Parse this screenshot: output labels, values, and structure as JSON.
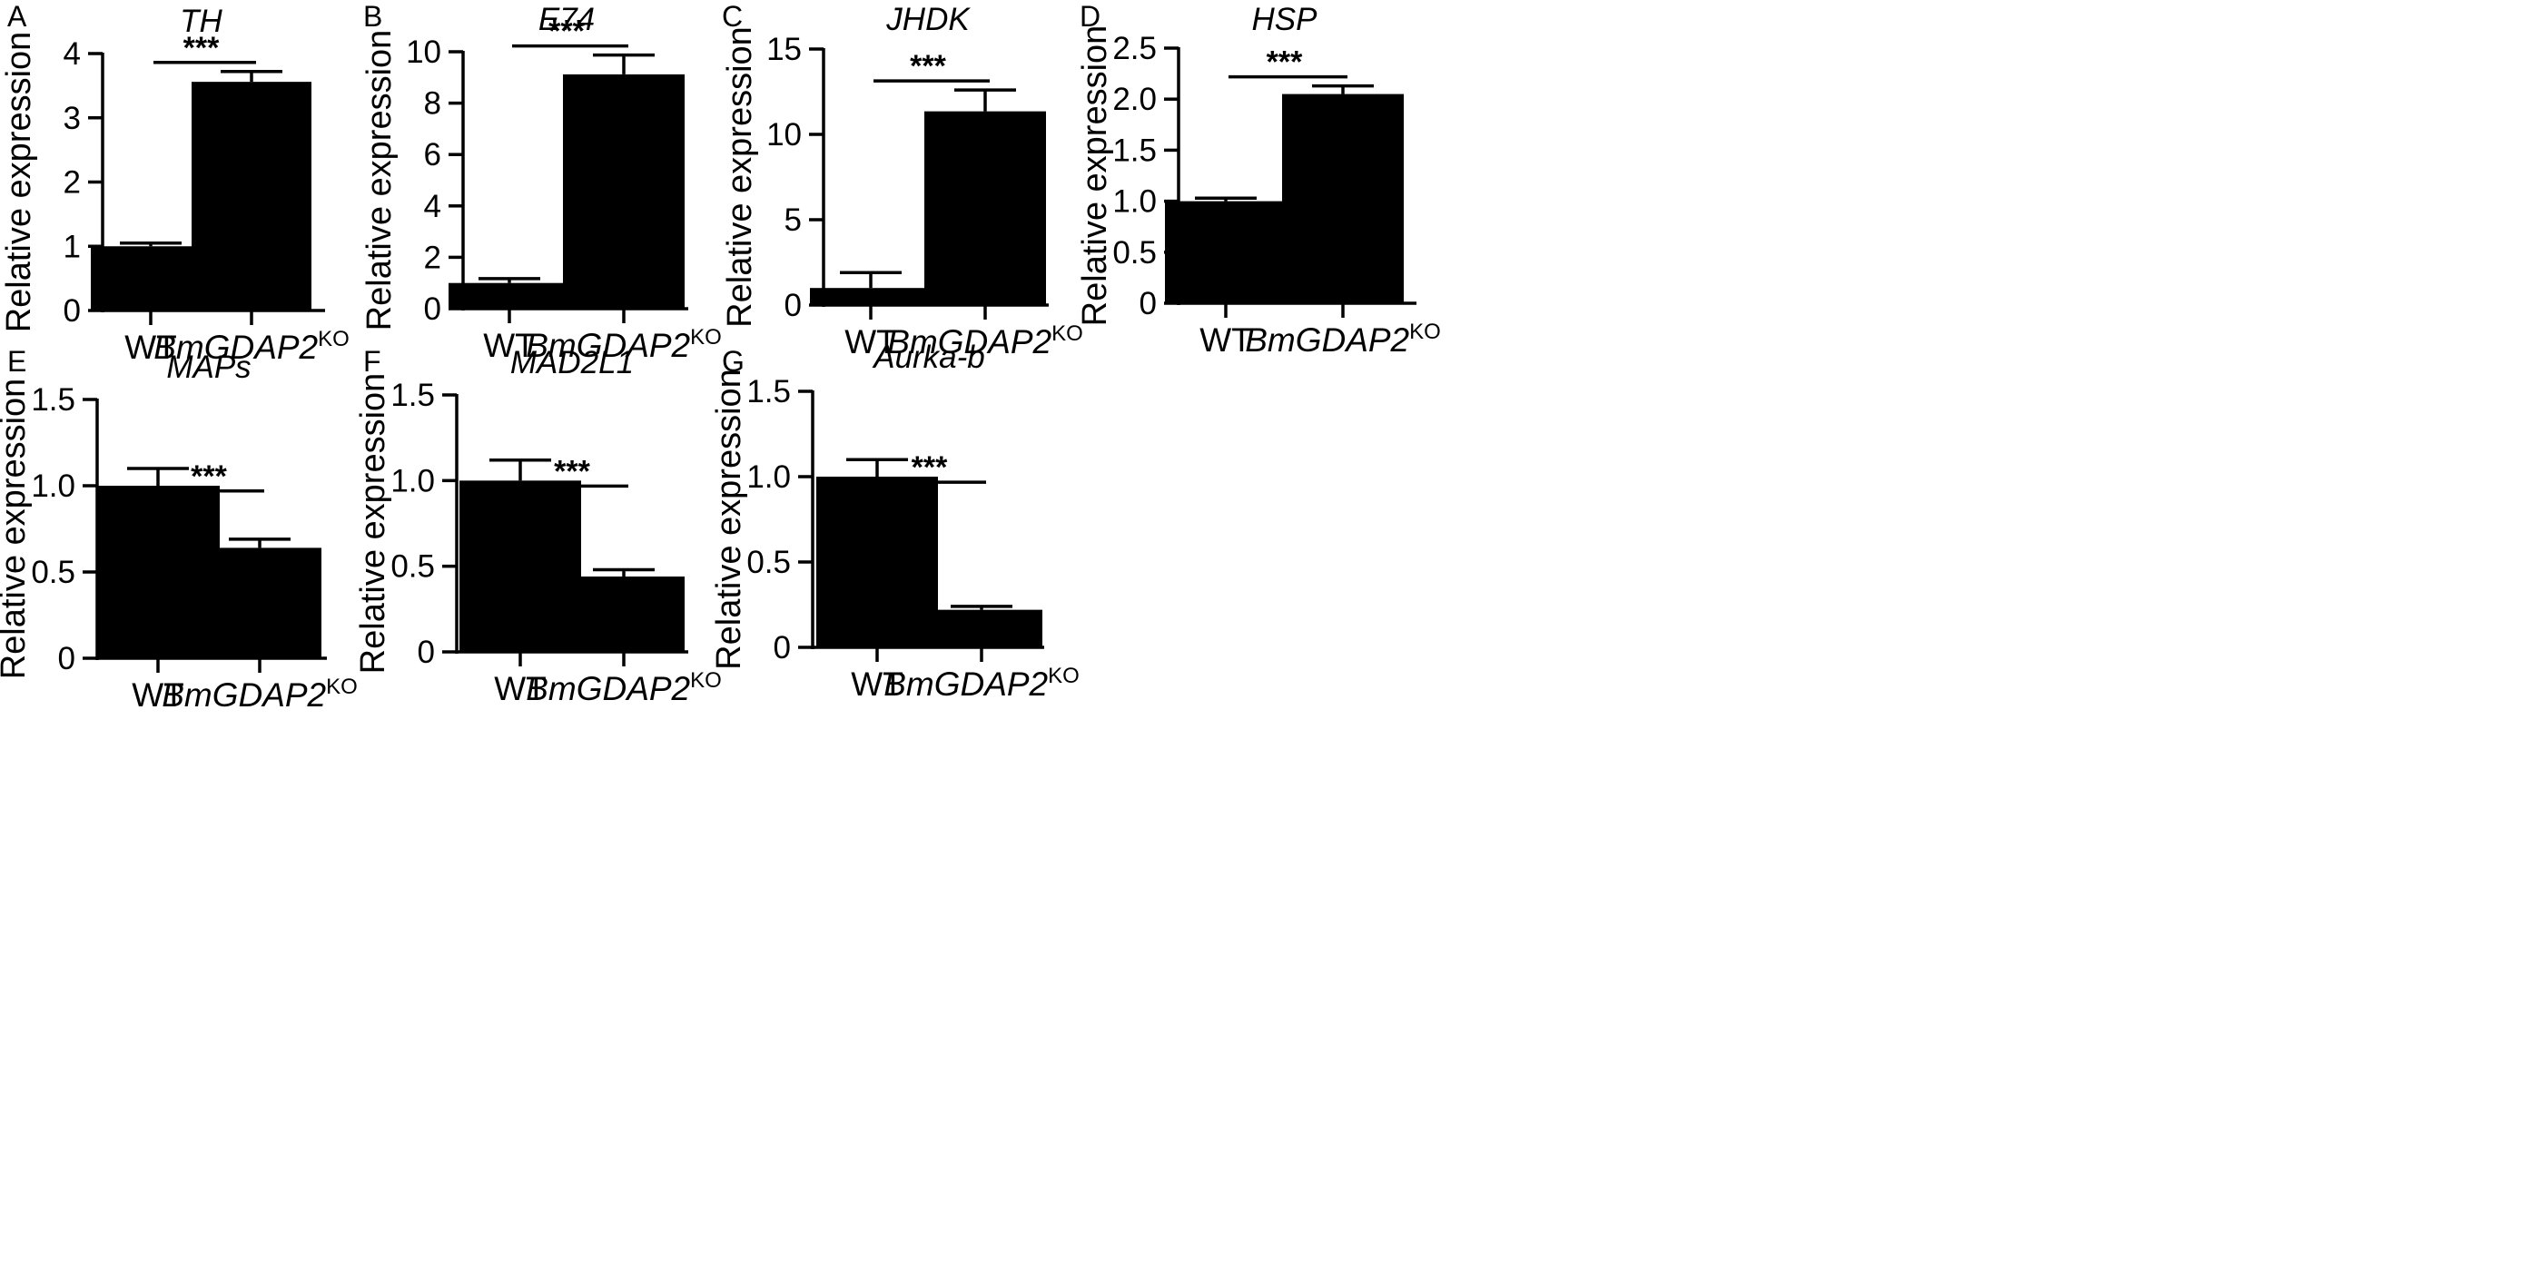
{
  "figure": {
    "chart_data": [
      {
        "panel": "A",
        "type": "bar",
        "title": "TH",
        "ylabel": "Relative expression",
        "categories": [
          "WT",
          "BmGDAP2"
        ],
        "category_superscripts": [
          "",
          "KO"
        ],
        "values": [
          1.0,
          3.56
        ],
        "errors": [
          0.05,
          0.16
        ],
        "ylim": [
          0,
          4
        ],
        "yticks": [
          0,
          1,
          2,
          3,
          4
        ],
        "ytick_labels": [
          "0",
          "1",
          "2",
          "3",
          "4"
        ],
        "significance": "***",
        "axis_color": "#000000",
        "bar_color": "#000000"
      },
      {
        "panel": "B",
        "type": "bar",
        "title": "E74",
        "ylabel": "Relative expression",
        "categories": [
          "WT",
          "BmGDAP2"
        ],
        "category_superscripts": [
          "",
          "KO"
        ],
        "values": [
          1.0,
          9.12
        ],
        "errors": [
          0.17,
          0.75
        ],
        "ylim": [
          0,
          10
        ],
        "yticks": [
          0,
          2,
          4,
          6,
          8,
          10
        ],
        "ytick_labels": [
          "0",
          "2",
          "4",
          "6",
          "8",
          "10"
        ],
        "significance": "***",
        "axis_color": "#000000",
        "bar_color": "#000000"
      },
      {
        "panel": "C",
        "type": "bar",
        "title": "JHDK",
        "ylabel": "Relative expression",
        "categories": [
          "WT",
          "BmGDAP2"
        ],
        "category_superscripts": [
          "",
          "KO"
        ],
        "values": [
          1.0,
          11.35
        ],
        "errors": [
          0.9,
          1.25
        ],
        "ylim": [
          0,
          15
        ],
        "yticks": [
          0,
          5,
          10,
          15
        ],
        "ytick_labels": [
          "0",
          "5",
          "10",
          "15"
        ],
        "significance": "***",
        "axis_color": "#000000",
        "bar_color": "#000000"
      },
      {
        "panel": "D",
        "type": "bar",
        "title": "HSP",
        "ylabel": "Relative expression",
        "categories": [
          "WT",
          "BmGDAP2"
        ],
        "category_superscripts": [
          "",
          "KO"
        ],
        "values": [
          1.0,
          2.05
        ],
        "errors": [
          0.03,
          0.08
        ],
        "ylim": [
          0,
          2.5
        ],
        "yticks": [
          0,
          0.5,
          1.0,
          1.5,
          2.0,
          2.5
        ],
        "ytick_labels": [
          "0",
          "0.5",
          "1.0",
          "1.5",
          "2.0",
          "2.5"
        ],
        "significance": "***",
        "axis_color": "#000000",
        "bar_color": "#000000"
      },
      {
        "panel": "E",
        "type": "bar",
        "title": "MAPs",
        "ylabel": "Relative expression",
        "categories": [
          "WT",
          "BmGDAP2"
        ],
        "category_superscripts": [
          "",
          "KO"
        ],
        "values": [
          1.0,
          0.64
        ],
        "errors": [
          0.1,
          0.05
        ],
        "ylim": [
          0,
          1.5
        ],
        "yticks": [
          0,
          0.5,
          1.0,
          1.5
        ],
        "ytick_labels": [
          "0",
          "0.5",
          "1.0",
          "1.5"
        ],
        "significance": "***",
        "axis_color": "#000000",
        "bar_color": "#000000"
      },
      {
        "panel": "F",
        "type": "bar",
        "title": "MAD2L1",
        "ylabel": "Relative expression",
        "categories": [
          "WT",
          "BmGDAP2"
        ],
        "category_superscripts": [
          "",
          "KO"
        ],
        "values": [
          1.0,
          0.44
        ],
        "errors": [
          0.12,
          0.04
        ],
        "ylim": [
          0,
          1.5
        ],
        "yticks": [
          0,
          0.5,
          1.0,
          1.5
        ],
        "ytick_labels": [
          "0",
          "0.5",
          "1.0",
          "1.5"
        ],
        "significance": "***",
        "axis_color": "#000000",
        "bar_color": "#000000"
      },
      {
        "panel": "G",
        "type": "bar",
        "title": "Aurka-b",
        "ylabel": "Relative expression",
        "categories": [
          "WT",
          "BmGDAP2"
        ],
        "category_superscripts": [
          "",
          "KO"
        ],
        "values": [
          1.0,
          0.22
        ],
        "errors": [
          0.1,
          0.02
        ],
        "ylim": [
          0,
          1.5
        ],
        "yticks": [
          0,
          0.5,
          1.0,
          1.5
        ],
        "ytick_labels": [
          "0",
          "0.5",
          "1.0",
          "1.5"
        ],
        "significance": "***",
        "axis_color": "#000000",
        "bar_color": "#000000"
      }
    ]
  }
}
